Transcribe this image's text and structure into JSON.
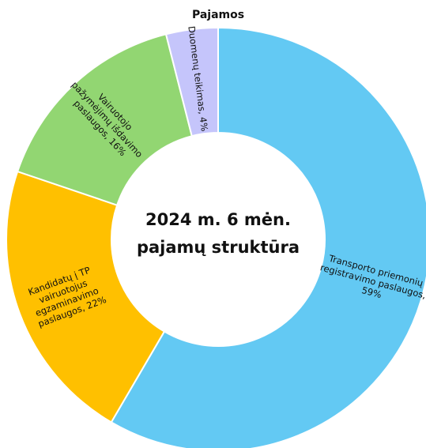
{
  "chart_data": {
    "type": "donut",
    "title": "Pajamos",
    "annotations": [
      "2024 m. 6 mėn.",
      "pajamų struktūra"
    ],
    "categories": [
      "Transporto priemonių registravimo paslaugos",
      "Kandidatų į TP vairuotojus egzaminavimo paslaugos",
      "Vairuotojo pažymėjimų išdavimo paslaugos",
      "Duomenų teikimas"
    ],
    "values": [
      59,
      22,
      16,
      4
    ],
    "value_labels": [
      "59%",
      "22%",
      "16%",
      "4%"
    ],
    "colors": [
      "#63c9f3",
      "#ffc000",
      "#92d672",
      "#c5c5fb"
    ]
  }
}
